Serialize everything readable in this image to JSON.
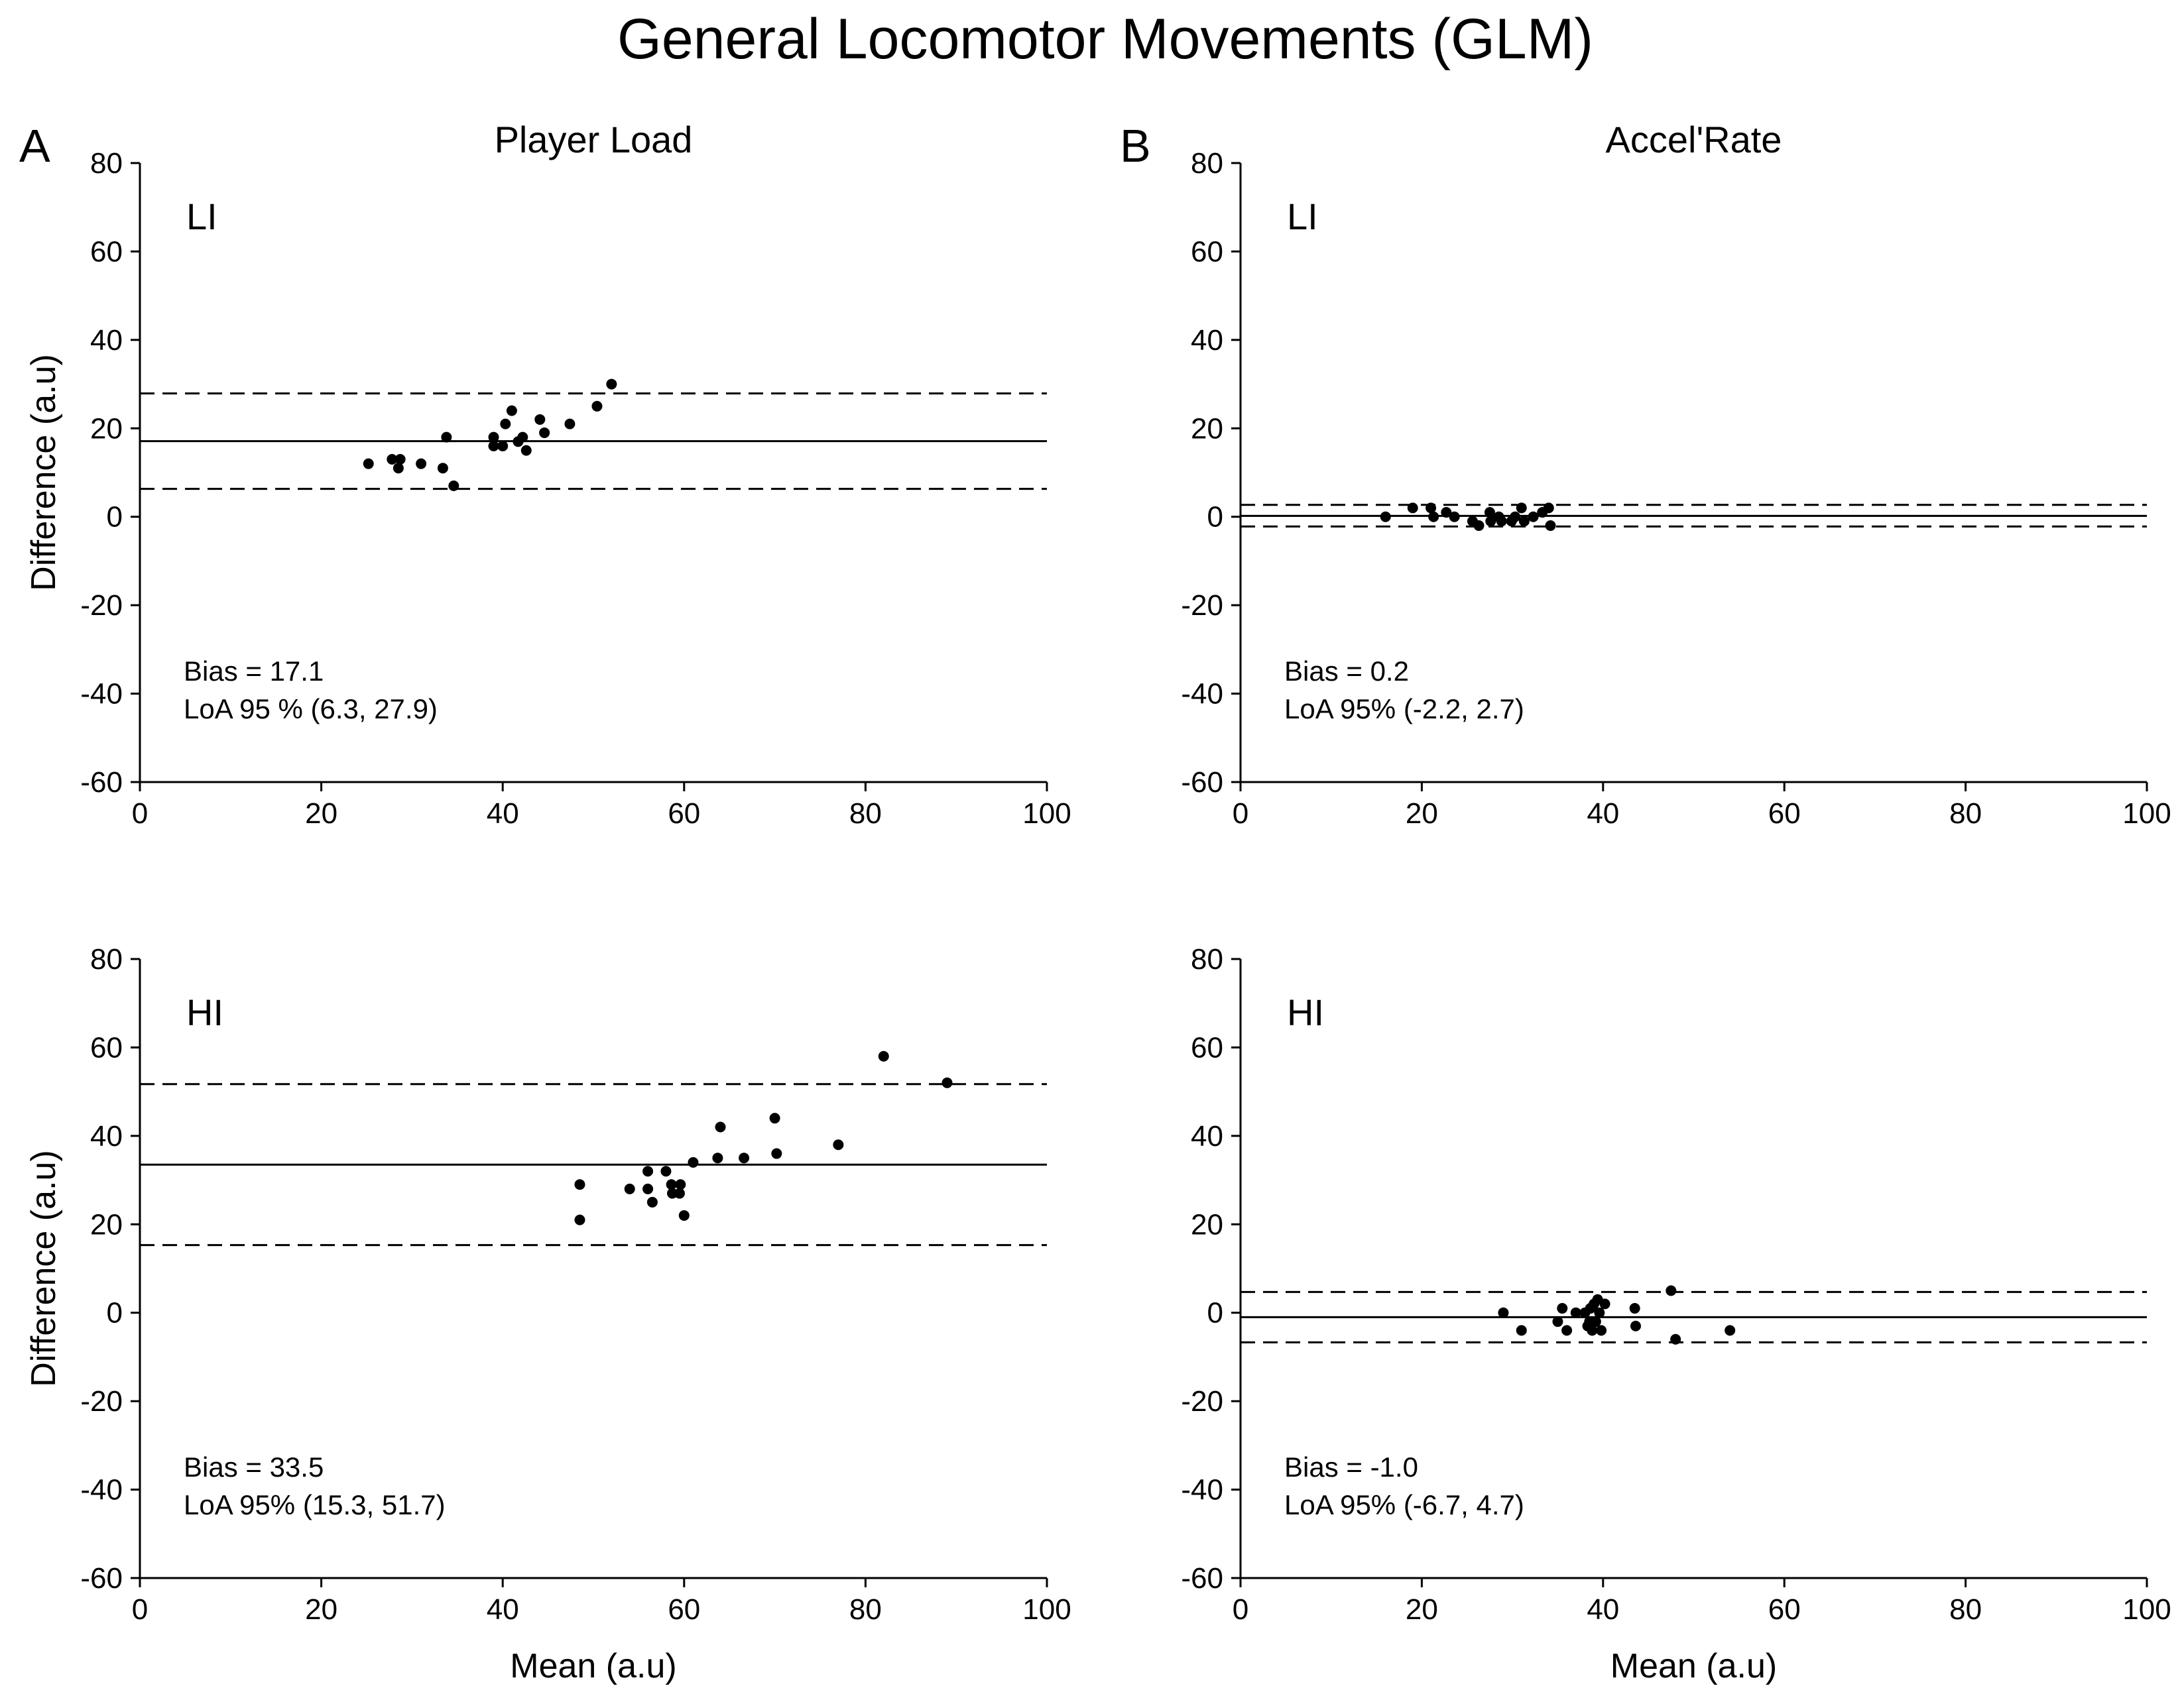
{
  "figure_title": "General Locomotor Movements (GLM)",
  "chart_data": [
    {
      "type": "scatter",
      "panel_letter": "A",
      "column_title": "Player Load",
      "condition": "LI",
      "xlabel": "",
      "ylabel": "Difference (a.u)",
      "xlim": [
        0,
        100
      ],
      "ylim": [
        -60,
        80
      ],
      "xticks": [
        "0",
        "20",
        "40",
        "60",
        "80",
        "100"
      ],
      "yticks": [
        "-60",
        "-40",
        "-20",
        "0",
        "20",
        "40",
        "60",
        "80"
      ],
      "bias": 17.1,
      "loa": [
        6.3,
        27.9
      ],
      "bias_label": "Bias = 17.1",
      "loa_label": "LoA 95 % (6.3, 27.9)",
      "points": [
        [
          25.2,
          12
        ],
        [
          27.8,
          13
        ],
        [
          28.5,
          11
        ],
        [
          28.7,
          13
        ],
        [
          31,
          12
        ],
        [
          33.4,
          11
        ],
        [
          33.8,
          18
        ],
        [
          34.6,
          7
        ],
        [
          39,
          16
        ],
        [
          39,
          18
        ],
        [
          40,
          16
        ],
        [
          40.3,
          21
        ],
        [
          41,
          24
        ],
        [
          41.7,
          17
        ],
        [
          42.2,
          18
        ],
        [
          42.6,
          15
        ],
        [
          44.1,
          22
        ],
        [
          44.6,
          19
        ],
        [
          47.4,
          21
        ],
        [
          50.4,
          25
        ],
        [
          52,
          30
        ]
      ]
    },
    {
      "type": "scatter",
      "panel_letter": "B",
      "column_title": "Accel'Rate",
      "condition": "LI",
      "xlabel": "",
      "ylabel": "",
      "xlim": [
        0,
        100
      ],
      "ylim": [
        -60,
        80
      ],
      "xticks": [
        "0",
        "20",
        "40",
        "60",
        "80",
        "100"
      ],
      "yticks": [
        "-60",
        "-40",
        "-20",
        "0",
        "20",
        "40",
        "60",
        "80"
      ],
      "bias": 0.2,
      "loa": [
        -2.2,
        2.7
      ],
      "bias_label": "Bias = 0.2",
      "loa_label": "LoA 95% (-2.2, 2.7)",
      "points": [
        [
          16,
          0
        ],
        [
          19,
          2
        ],
        [
          21,
          2
        ],
        [
          21.3,
          0
        ],
        [
          22.7,
          1
        ],
        [
          23.6,
          0
        ],
        [
          25.6,
          -1
        ],
        [
          26.3,
          -2
        ],
        [
          27.5,
          1
        ],
        [
          27.6,
          -1
        ],
        [
          28.5,
          0
        ],
        [
          28.8,
          -1
        ],
        [
          29.9,
          -1
        ],
        [
          30.3,
          0
        ],
        [
          31,
          2
        ],
        [
          31.3,
          -1
        ],
        [
          32.3,
          0
        ],
        [
          33.3,
          1
        ],
        [
          34,
          2
        ],
        [
          34.2,
          -2
        ]
      ]
    },
    {
      "type": "scatter",
      "panel_letter": "",
      "column_title": "",
      "condition": "HI",
      "xlabel": "Mean (a.u)",
      "ylabel": "Difference (a.u)",
      "xlim": [
        0,
        100
      ],
      "ylim": [
        -60,
        80
      ],
      "xticks": [
        "0",
        "20",
        "40",
        "60",
        "80",
        "100"
      ],
      "yticks": [
        "-60",
        "-40",
        "-20",
        "0",
        "20",
        "40",
        "60",
        "80"
      ],
      "bias": 33.5,
      "loa": [
        15.3,
        51.7
      ],
      "bias_label": "Bias = 33.5",
      "loa_label": "LoA 95% (15.3, 51.7)",
      "points": [
        [
          48.5,
          29
        ],
        [
          48.5,
          21
        ],
        [
          54,
          28
        ],
        [
          56,
          32
        ],
        [
          56,
          28
        ],
        [
          56.5,
          25
        ],
        [
          58,
          32
        ],
        [
          58.6,
          29
        ],
        [
          58.7,
          27
        ],
        [
          59.5,
          27
        ],
        [
          59.6,
          29
        ],
        [
          60,
          22
        ],
        [
          61,
          34
        ],
        [
          63.7,
          35
        ],
        [
          64,
          42
        ],
        [
          66.6,
          35
        ],
        [
          70,
          44
        ],
        [
          70.2,
          36
        ],
        [
          77,
          38
        ],
        [
          82,
          58
        ],
        [
          89,
          52
        ]
      ]
    },
    {
      "type": "scatter",
      "panel_letter": "",
      "column_title": "",
      "condition": "HI",
      "xlabel": "Mean (a.u)",
      "ylabel": "",
      "xlim": [
        0,
        100
      ],
      "ylim": [
        -60,
        80
      ],
      "xticks": [
        "0",
        "20",
        "40",
        "60",
        "80",
        "100"
      ],
      "yticks": [
        "-60",
        "-40",
        "-20",
        "0",
        "20",
        "40",
        "60",
        "80"
      ],
      "bias": -1.0,
      "loa": [
        -6.7,
        4.7
      ],
      "bias_label": "Bias = -1.0",
      "loa_label": "LoA 95% (-6.7, 4.7)",
      "points": [
        [
          29,
          0
        ],
        [
          31,
          -4
        ],
        [
          35,
          -2
        ],
        [
          35.5,
          1
        ],
        [
          36,
          -4
        ],
        [
          37,
          0
        ],
        [
          38,
          0
        ],
        [
          38.3,
          -3
        ],
        [
          38.5,
          -2
        ],
        [
          38.6,
          1
        ],
        [
          38.8,
          -4
        ],
        [
          39,
          2
        ],
        [
          39.2,
          -2
        ],
        [
          39.4,
          3
        ],
        [
          39.6,
          0
        ],
        [
          39.8,
          -4
        ],
        [
          40.2,
          2
        ],
        [
          43.5,
          1
        ],
        [
          43.6,
          -3
        ],
        [
          47.5,
          5
        ],
        [
          48,
          -6
        ],
        [
          54,
          -4
        ]
      ]
    }
  ]
}
